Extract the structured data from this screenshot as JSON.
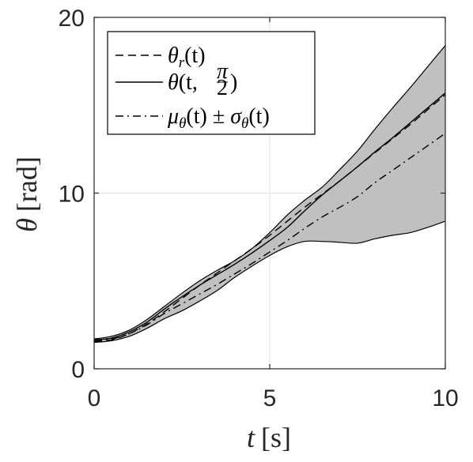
{
  "chart_data": {
    "type": "line",
    "xlabel": {
      "symbol": "t",
      "unit": "[s]"
    },
    "ylabel": {
      "symbol": "θ",
      "unit": "[rad]"
    },
    "xlim": [
      0,
      10
    ],
    "ylim": [
      0,
      20
    ],
    "xticks": [
      0,
      5,
      10
    ],
    "yticks": [
      0,
      10,
      20
    ],
    "xtick_labels": [
      "0",
      "5",
      "10"
    ],
    "ytick_labels": [
      "0",
      "10",
      "20"
    ],
    "grid": true,
    "legend_position": "top-left",
    "band_color": "#c0c0c0",
    "line_color": "#000000",
    "series": [
      {
        "name": "θr(t)",
        "legend": {
          "main": "θ",
          "sub": "r",
          "rest": "(t)"
        },
        "style": "dashed",
        "x": [
          0,
          0.5,
          1,
          1.5,
          2,
          2.5,
          3,
          3.5,
          4,
          4.5,
          5,
          5.5,
          6,
          6.5,
          7,
          7.5,
          8,
          8.5,
          9,
          9.5,
          10
        ],
        "y": [
          1.55,
          1.65,
          2.0,
          2.55,
          3.25,
          4.0,
          4.75,
          5.45,
          6.15,
          6.85,
          7.6,
          8.4,
          9.2,
          9.95,
          10.7,
          11.5,
          12.3,
          13.1,
          13.9,
          14.75,
          15.6
        ]
      },
      {
        "name": "θ(t, π/2)",
        "legend": {
          "main": "θ",
          "open": "(t, ",
          "num": "π",
          "den": "2",
          "close": ")"
        },
        "style": "solid",
        "x": [
          0,
          0.5,
          1,
          1.5,
          2,
          2.5,
          3,
          3.5,
          4,
          4.5,
          5,
          5.5,
          6,
          6.5,
          7,
          7.5,
          8,
          8.5,
          9,
          9.5,
          10
        ],
        "y": [
          1.65,
          1.75,
          2.1,
          2.65,
          3.4,
          4.1,
          4.75,
          5.35,
          5.95,
          6.6,
          7.3,
          8.05,
          9.0,
          9.9,
          10.7,
          11.5,
          12.35,
          13.15,
          14.0,
          14.85,
          15.7
        ]
      },
      {
        "name": "μθ(t) ± σθ(t)",
        "legend": {
          "m": "μ",
          "msub": "θ",
          "mrest": "(t) ± ",
          "s": "σ",
          "ssub": "θ",
          "srest": "(t)"
        },
        "style": "dashdot",
        "x": [
          0,
          0.5,
          1,
          1.5,
          2,
          2.5,
          3,
          3.5,
          4,
          4.5,
          5,
          5.5,
          6,
          6.5,
          7,
          7.5,
          8,
          8.5,
          9,
          9.5,
          10
        ],
        "y": [
          1.6,
          1.7,
          2.0,
          2.5,
          3.15,
          3.7,
          4.25,
          4.8,
          5.4,
          6.0,
          6.65,
          7.3,
          8.0,
          8.65,
          9.2,
          9.8,
          10.6,
          11.3,
          12.0,
          12.7,
          13.4
        ],
        "upper": [
          1.7,
          1.85,
          2.2,
          2.8,
          3.55,
          4.3,
          5.0,
          5.6,
          6.15,
          6.85,
          7.75,
          8.75,
          9.6,
          10.35,
          11.35,
          12.4,
          13.65,
          14.85,
          16.0,
          17.2,
          18.4
        ],
        "lower": [
          1.5,
          1.6,
          1.85,
          2.3,
          2.85,
          3.3,
          3.85,
          4.45,
          5.2,
          5.85,
          6.45,
          6.95,
          7.25,
          7.25,
          7.2,
          7.15,
          7.4,
          7.6,
          7.75,
          8.05,
          8.4
        ]
      }
    ]
  }
}
